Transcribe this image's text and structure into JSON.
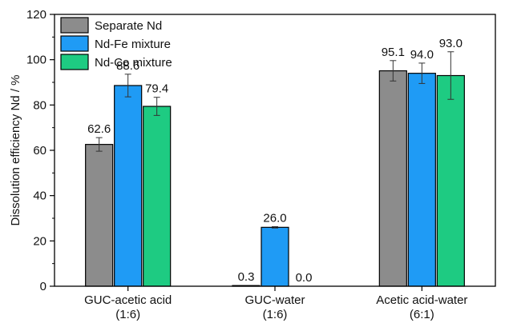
{
  "chart_data": {
    "type": "bar",
    "ylabel": "Dissolution efficiency Nd / %",
    "xlabel": "",
    "ylim": [
      0,
      120
    ],
    "yticks": [
      0,
      20,
      40,
      60,
      80,
      100,
      120
    ],
    "categories": [
      [
        "GUC-acetic acid",
        "(1:6)"
      ],
      [
        "GUC-water",
        "(1:6)"
      ],
      [
        "Acetic acid-water",
        "(6:1)"
      ]
    ],
    "series": [
      {
        "name": "Separate Nd",
        "color": "#8c8c8c",
        "values": [
          62.6,
          0.3,
          95.1
        ],
        "labels": [
          "62.6",
          "0.3",
          "95.1"
        ],
        "errors": [
          3.0,
          0,
          4.5
        ]
      },
      {
        "name": "Nd-Fe mixture",
        "color": "#1f9bf5",
        "values": [
          88.6,
          26.0,
          94.0
        ],
        "labels": [
          "88.6",
          "26.0",
          "94.0"
        ],
        "errors": [
          5.0,
          0.3,
          4.5
        ]
      },
      {
        "name": "Nd-Co mixture",
        "color": "#1ecb82",
        "values": [
          79.4,
          0.0,
          93.0
        ],
        "labels": [
          "79.4",
          "0.0",
          "93.0"
        ],
        "errors": [
          4.0,
          0,
          10.5
        ]
      }
    ],
    "legend": "top-left",
    "grid": false,
    "error_bars": true
  }
}
